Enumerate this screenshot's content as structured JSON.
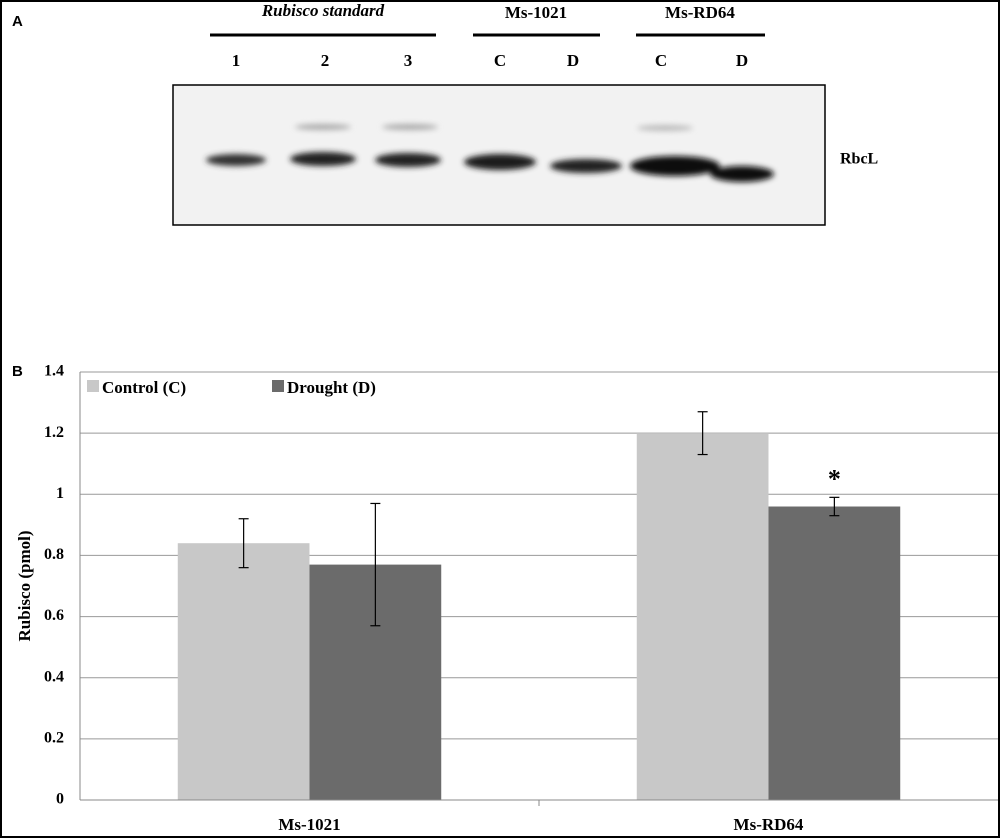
{
  "panel_a": {
    "label": "A",
    "groups": [
      "Rubisco standard",
      "Ms-1021",
      "Ms-RD64"
    ],
    "lanes": [
      "1",
      "2",
      "3",
      "C",
      "D",
      "C",
      "D"
    ],
    "band_label": "RbcL"
  },
  "chart_data": {
    "type": "bar",
    "panel_label": "B",
    "y_label": "Rubisco (pmol)",
    "categories": [
      "Ms-1021",
      "Ms-RD64"
    ],
    "series": [
      {
        "name": "Control (C)",
        "color": "#c8c8c8",
        "values": [
          0.84,
          1.2
        ],
        "errors": [
          0.08,
          0.07
        ]
      },
      {
        "name": "Drought (D)",
        "color": "#6b6b6b",
        "values": [
          0.77,
          0.96
        ],
        "errors": [
          0.2,
          0.03
        ]
      }
    ],
    "annotations": [
      {
        "text": "*",
        "series": 1,
        "index": 1
      }
    ],
    "ylim": [
      0,
      1.4
    ],
    "yticks": [
      0,
      0.2,
      0.4,
      0.6,
      0.8,
      1,
      1.2,
      1.4
    ],
    "grid": true,
    "legend": "top-left"
  }
}
